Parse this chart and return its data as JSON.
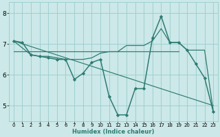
{
  "xlabel": "Humidex (Indice chaleur)",
  "background_color": "#cce8e8",
  "grid_color": "#99cccc",
  "line_color": "#2d7b72",
  "xlim": [
    -0.5,
    23.5
  ],
  "ylim": [
    4.5,
    8.35
  ],
  "xticks": [
    0,
    1,
    2,
    3,
    4,
    5,
    6,
    7,
    8,
    9,
    10,
    11,
    12,
    13,
    14,
    15,
    16,
    17,
    18,
    19,
    20,
    21,
    22,
    23
  ],
  "yticks": [
    5,
    6,
    7,
    8
  ],
  "lines": [
    {
      "x": [
        0,
        1,
        2,
        3,
        4,
        5,
        6,
        7,
        8,
        9,
        10,
        11,
        12,
        13,
        14,
        15,
        16,
        17,
        18,
        19,
        20,
        21,
        22,
        23
      ],
      "y": [
        7.1,
        7.05,
        6.65,
        6.6,
        6.55,
        6.5,
        6.5,
        5.85,
        6.05,
        6.4,
        6.5,
        5.3,
        4.7,
        4.7,
        5.55,
        5.55,
        7.2,
        7.9,
        7.05,
        7.05,
        6.8,
        6.35,
        5.9,
        4.8
      ],
      "marker": "D",
      "markersize": 2.2,
      "linewidth": 1.1
    },
    {
      "x": [
        0,
        2,
        3,
        4,
        5,
        6,
        7,
        8,
        9,
        10,
        11,
        12,
        13,
        14,
        15,
        16,
        17,
        18,
        19,
        20,
        21,
        22,
        23
      ],
      "y": [
        7.1,
        6.65,
        6.6,
        6.6,
        6.55,
        6.5,
        6.5,
        6.5,
        6.55,
        6.7,
        6.75,
        6.75,
        6.95,
        6.95,
        6.95,
        7.1,
        7.5,
        7.05,
        7.05,
        6.8,
        6.8,
        6.8,
        4.82
      ],
      "marker": null,
      "linewidth": 0.9
    },
    {
      "x": [
        0,
        23
      ],
      "y": [
        7.1,
        5.0
      ],
      "marker": null,
      "linewidth": 0.85
    },
    {
      "x": [
        0,
        19
      ],
      "y": [
        6.75,
        6.75
      ],
      "marker": null,
      "linewidth": 0.85
    }
  ]
}
